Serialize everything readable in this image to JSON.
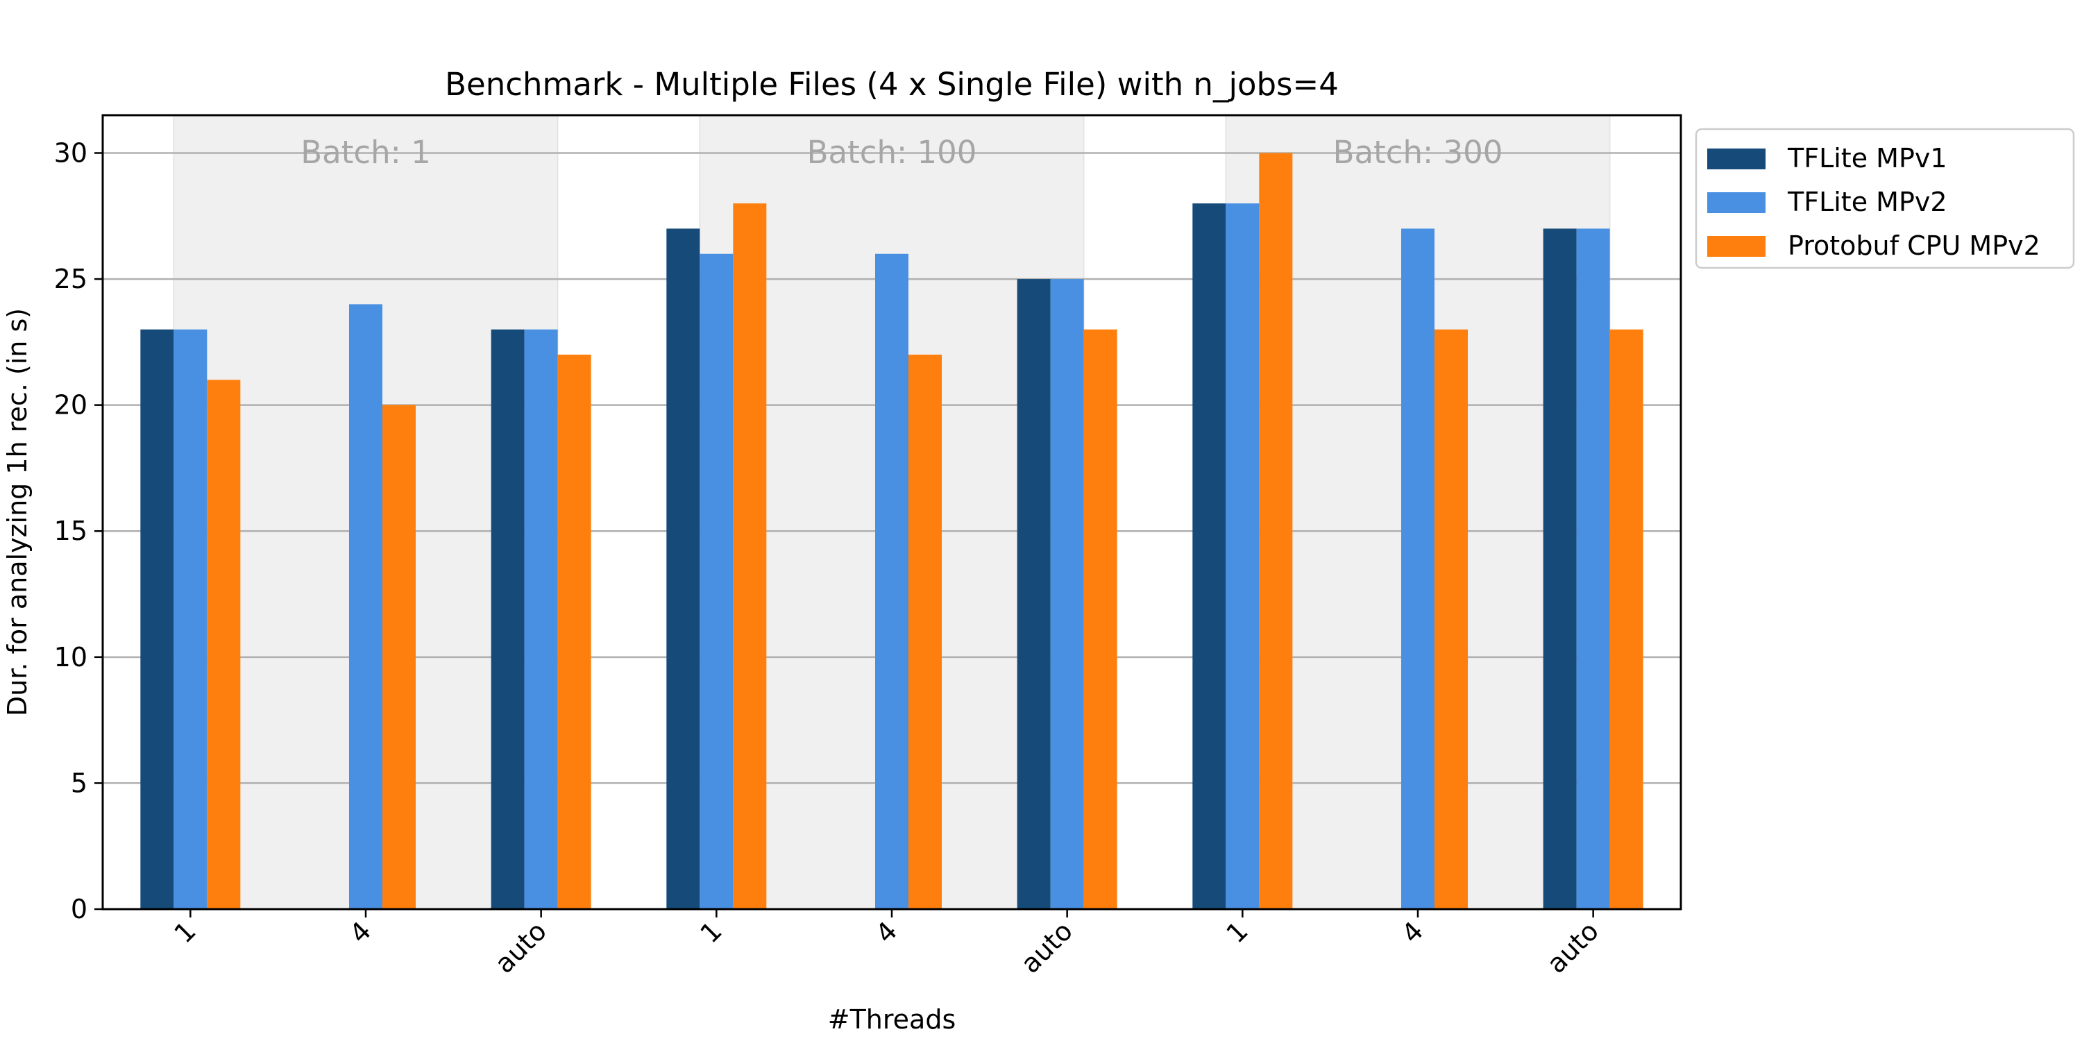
{
  "chart_data": {
    "type": "bar",
    "title": "Benchmark - Multiple Files (4 x Single File) with n_jobs=4",
    "xlabel": "#Threads",
    "ylabel": "Dur. for analyzing 1h rec. (in s)",
    "ylim": [
      0,
      31.5
    ],
    "yticks": [
      0,
      5,
      10,
      15,
      20,
      25,
      30
    ],
    "grid": "horizontal",
    "legend_position": "top-right-outside",
    "categories": [
      "1",
      "4",
      "auto",
      "1",
      "4",
      "auto",
      "1",
      "4",
      "auto"
    ],
    "groups": [
      {
        "label": "Batch: 1",
        "start_index": 0,
        "end_index": 2
      },
      {
        "label": "Batch: 100",
        "start_index": 3,
        "end_index": 5
      },
      {
        "label": "Batch: 300",
        "start_index": 6,
        "end_index": 8
      }
    ],
    "series": [
      {
        "name": "TFLite MPv1",
        "color": "#154a79",
        "values": [
          23,
          null,
          23,
          27,
          null,
          25,
          28,
          null,
          27
        ]
      },
      {
        "name": "TFLite MPv2",
        "color": "#4a90e2",
        "values": [
          23,
          24,
          23,
          26,
          26,
          25,
          28,
          27,
          27
        ]
      },
      {
        "name": "Protobuf CPU MPv2",
        "color": "#ff7f0e",
        "values": [
          21,
          20,
          22,
          28,
          22,
          23,
          30,
          23,
          23
        ]
      }
    ]
  }
}
